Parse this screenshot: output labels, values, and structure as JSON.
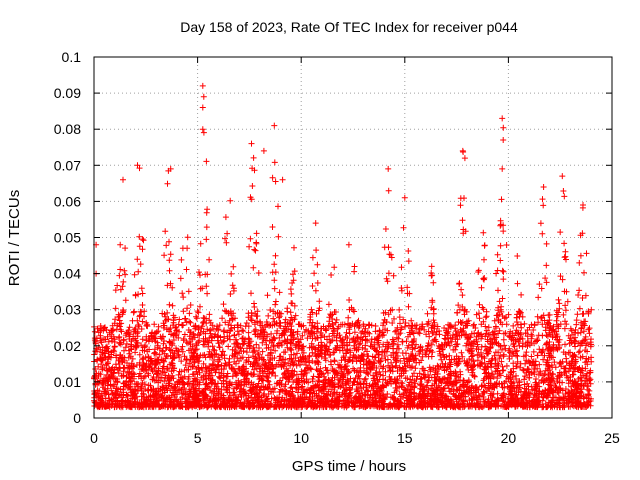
{
  "chart_data": {
    "type": "scatter",
    "title": "Day 158 of 2023, Rate Of TEC Index for receiver p044",
    "xlabel": "GPS time / hours",
    "ylabel": "ROTI / TECUs",
    "xlim": [
      0,
      25
    ],
    "ylim": [
      0,
      0.1
    ],
    "xticks": [
      "0",
      "5",
      "10",
      "15",
      "20",
      "25"
    ],
    "yticks": [
      "0",
      "0.01",
      "0.02",
      "0.03",
      "0.04",
      "0.05",
      "0.06",
      "0.07",
      "0.08",
      "0.09",
      "0.1"
    ],
    "grid": true,
    "marker": "+",
    "marker_color": "#ff0000",
    "x_range_of_data": [
      0,
      24
    ],
    "dense_band_range": [
      0.003,
      0.03
    ],
    "notable_points": [
      {
        "x": 5.25,
        "y": 0.092
      },
      {
        "x": 5.3,
        "y": 0.089
      },
      {
        "x": 5.25,
        "y": 0.086
      },
      {
        "x": 5.25,
        "y": 0.08
      },
      {
        "x": 19.7,
        "y": 0.083
      },
      {
        "x": 19.75,
        "y": 0.077
      },
      {
        "x": 19.7,
        "y": 0.069
      },
      {
        "x": 8.7,
        "y": 0.081
      },
      {
        "x": 7.6,
        "y": 0.076
      },
      {
        "x": 8.2,
        "y": 0.074
      },
      {
        "x": 17.8,
        "y": 0.074
      },
      {
        "x": 17.9,
        "y": 0.072
      },
      {
        "x": 2.1,
        "y": 0.07
      },
      {
        "x": 3.7,
        "y": 0.069
      },
      {
        "x": 14.2,
        "y": 0.069
      },
      {
        "x": 22.6,
        "y": 0.067
      },
      {
        "x": 9.1,
        "y": 0.066
      },
      {
        "x": 1.4,
        "y": 0.066
      },
      {
        "x": 21.7,
        "y": 0.064
      },
      {
        "x": 15.0,
        "y": 0.061
      },
      {
        "x": 23.6,
        "y": 0.059
      },
      {
        "x": 0.1,
        "y": 0.048
      },
      {
        "x": 0.1,
        "y": 0.04
      },
      {
        "x": 10.7,
        "y": 0.054
      },
      {
        "x": 12.3,
        "y": 0.048
      },
      {
        "x": 16.3,
        "y": 0.042
      },
      {
        "x": 24.0,
        "y": 0.03
      }
    ],
    "activity_peaks": [
      {
        "x": 1.3,
        "y_max": 0.066
      },
      {
        "x": 2.2,
        "y_max": 0.07
      },
      {
        "x": 3.6,
        "y_max": 0.069
      },
      {
        "x": 4.4,
        "y_max": 0.064
      },
      {
        "x": 5.3,
        "y_max": 0.092
      },
      {
        "x": 6.5,
        "y_max": 0.067
      },
      {
        "x": 7.7,
        "y_max": 0.076
      },
      {
        "x": 8.7,
        "y_max": 0.081
      },
      {
        "x": 9.5,
        "y_max": 0.06
      },
      {
        "x": 10.7,
        "y_max": 0.054
      },
      {
        "x": 11.5,
        "y_max": 0.045
      },
      {
        "x": 12.5,
        "y_max": 0.048
      },
      {
        "x": 14.2,
        "y_max": 0.069
      },
      {
        "x": 15.0,
        "y_max": 0.061
      },
      {
        "x": 16.3,
        "y_max": 0.042
      },
      {
        "x": 17.8,
        "y_max": 0.074
      },
      {
        "x": 18.7,
        "y_max": 0.06
      },
      {
        "x": 19.7,
        "y_max": 0.083
      },
      {
        "x": 20.5,
        "y_max": 0.048
      },
      {
        "x": 21.7,
        "y_max": 0.064
      },
      {
        "x": 22.6,
        "y_max": 0.067
      },
      {
        "x": 23.6,
        "y_max": 0.059
      }
    ]
  }
}
